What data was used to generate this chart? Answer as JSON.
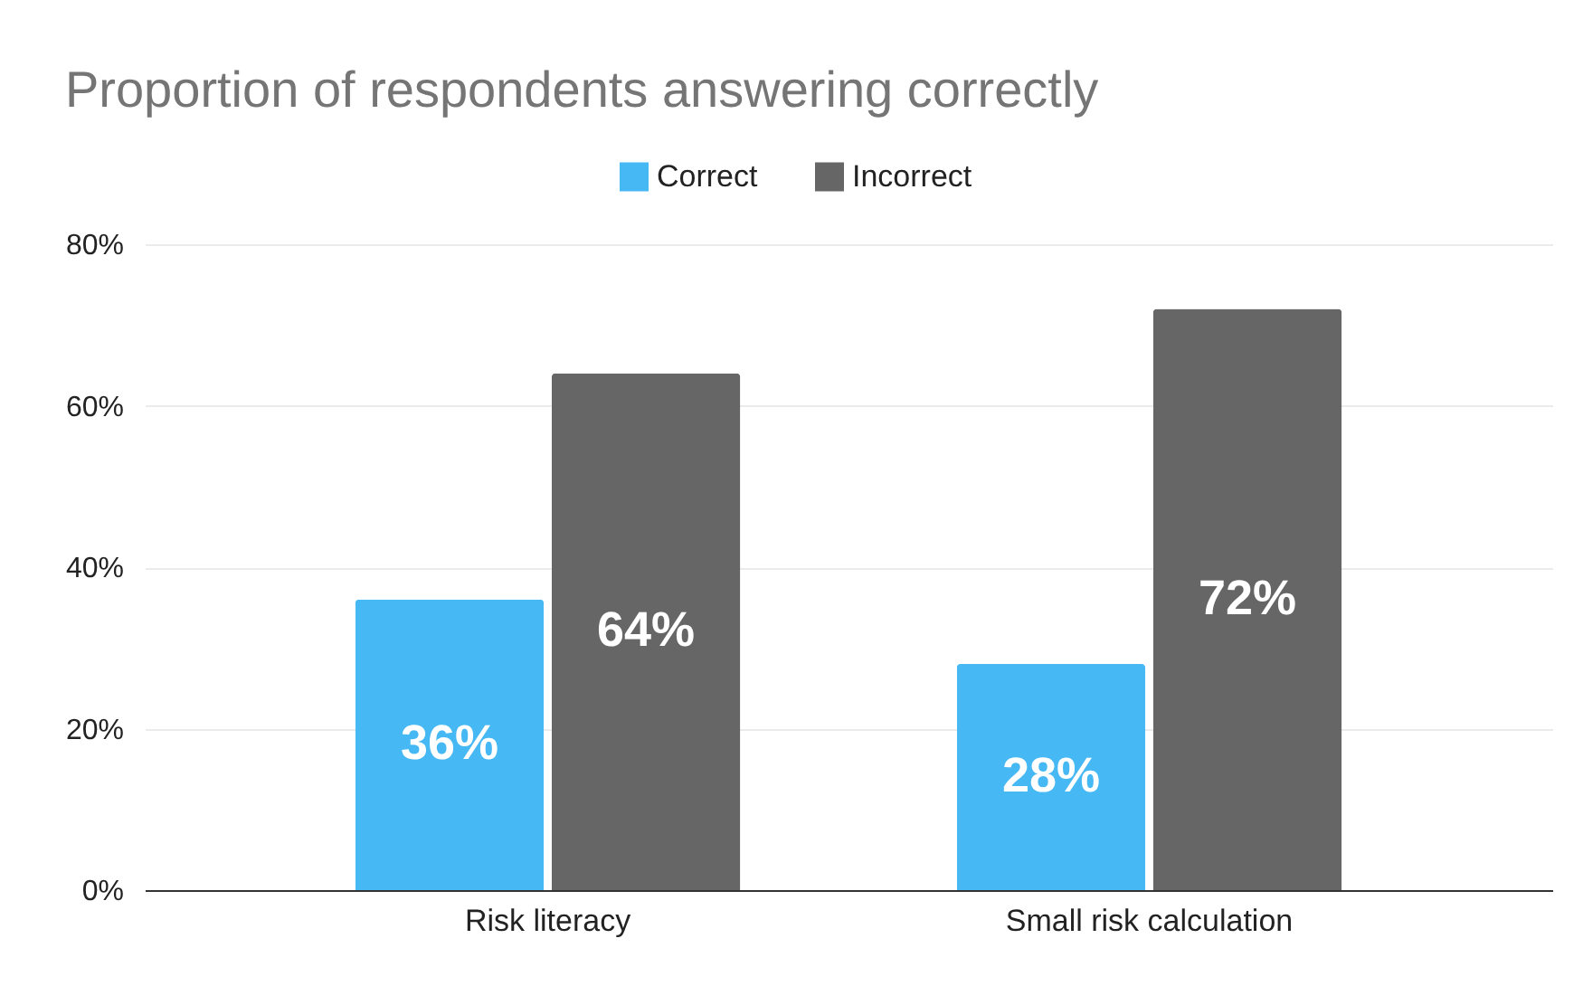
{
  "chart_data": {
    "type": "bar",
    "title": "Proportion of respondents answering correctly",
    "categories": [
      "Risk literacy",
      "Small risk calculation"
    ],
    "series": [
      {
        "name": "Correct",
        "color": "#46b8f4",
        "values": [
          36,
          28
        ],
        "value_labels": [
          "36%",
          "28%"
        ]
      },
      {
        "name": "Incorrect",
        "color": "#666666",
        "values": [
          64,
          72
        ],
        "value_labels": [
          "64%",
          "72%"
        ]
      }
    ],
    "ylim": [
      0,
      80
    ],
    "yticks": [
      {
        "value": 0,
        "label": "0%"
      },
      {
        "value": 20,
        "label": "20%"
      },
      {
        "value": 40,
        "label": "40%"
      },
      {
        "value": 60,
        "label": "60%"
      },
      {
        "value": 80,
        "label": "80%"
      }
    ],
    "grid": "y",
    "legend": "top"
  }
}
